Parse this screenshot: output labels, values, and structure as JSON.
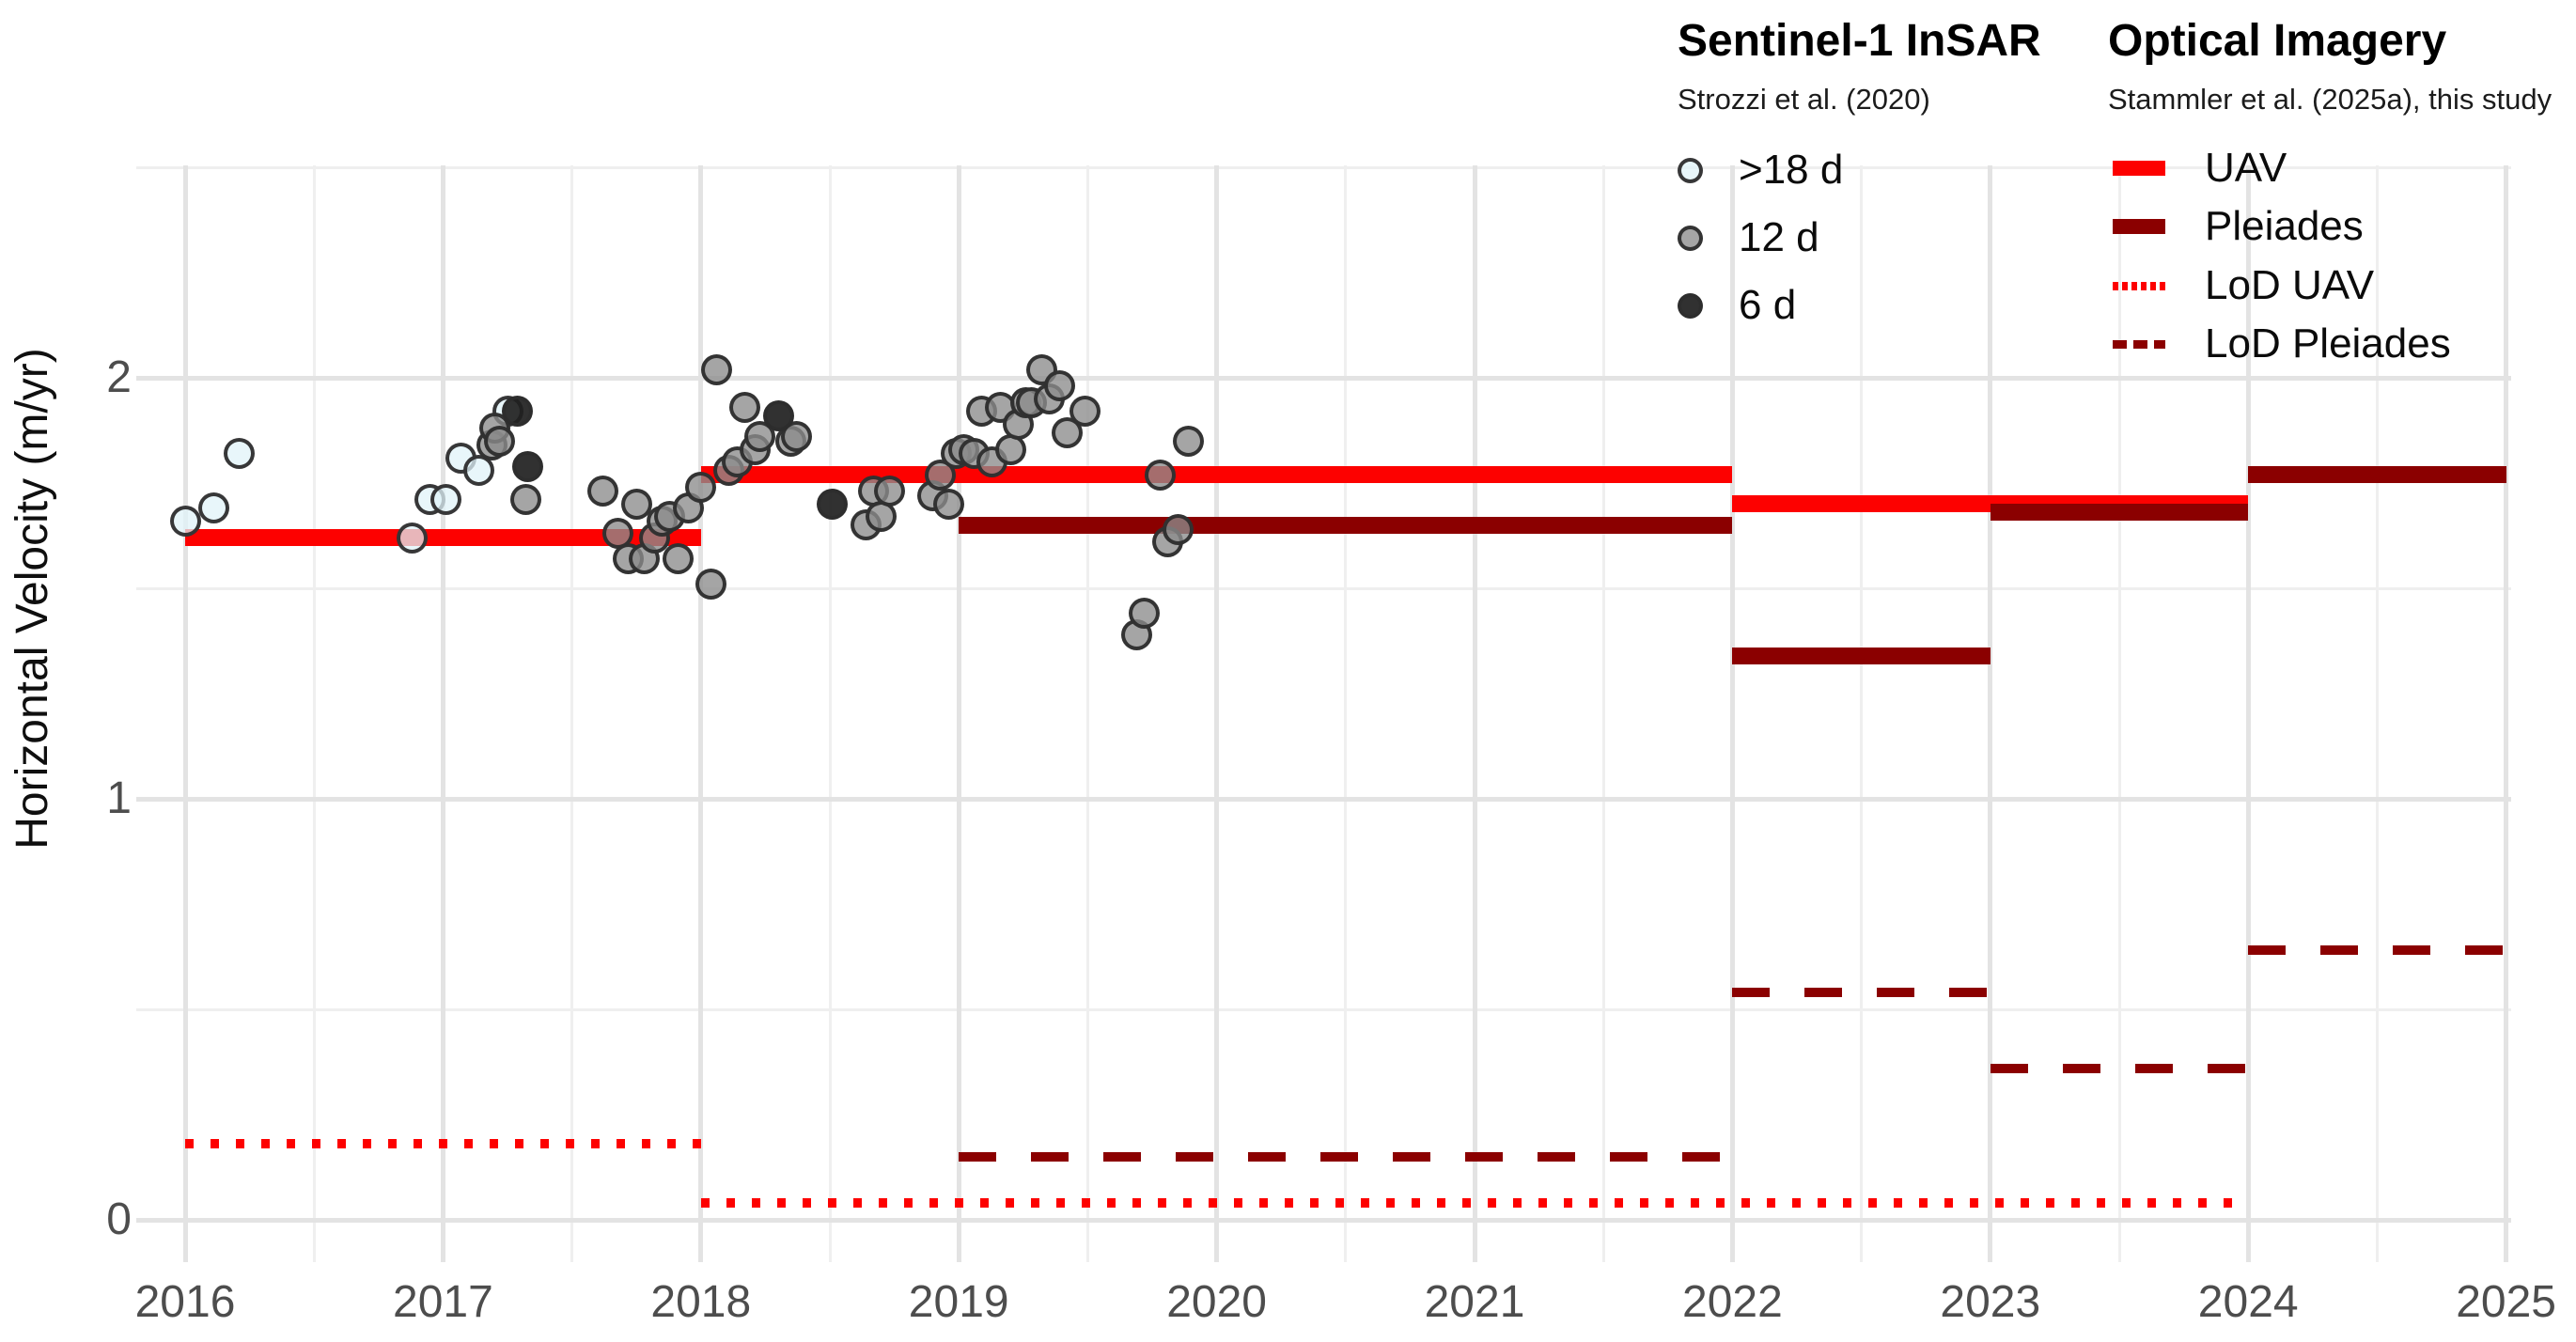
{
  "axes": {
    "y_label": "Horizontal Velocity (m/yr)",
    "x_tick_labels": [
      "2016",
      "2017",
      "2018",
      "2019",
      "2020",
      "2021",
      "2022",
      "2023",
      "2024",
      "2025"
    ],
    "y_tick_labels": [
      "0",
      "1",
      "2"
    ]
  },
  "legend": {
    "insar": {
      "title": "Sentinel-1 InSAR",
      "subtitle": "Strozzi et al. (2020)",
      "items": [
        {
          "label": ">18 d",
          "marker": "circle-open"
        },
        {
          "label": "12 d",
          "marker": "circle-gray"
        },
        {
          "label": "6 d",
          "marker": "circle-black"
        }
      ]
    },
    "optical": {
      "title": "Optical Imagery",
      "subtitle": "Stammler et al. (2025a), this study",
      "items": [
        {
          "label": "UAV",
          "line": "solid",
          "color_key": "uav_red"
        },
        {
          "label": "Pleiades",
          "line": "solid",
          "color_key": "pleiades_dark_red"
        },
        {
          "label": "LoD UAV",
          "line": "dotted",
          "color_key": "uav_red"
        },
        {
          "label": "LoD Pleiades",
          "line": "dashed",
          "color_key": "pleiades_dark_red"
        }
      ]
    }
  },
  "colors": {
    "uav_red": "#fd0100",
    "pleiades_dark_red": "#8b0000",
    "marker_open_fill": "rgba(224,243,248,0.75)",
    "marker_12d_fill": "rgba(140,140,140,0.78)",
    "marker_6d_fill": "rgba(32,32,32,0.92)",
    "marker_stroke": "rgba(45,45,45,0.95)",
    "grid_major": "#e3e3e3",
    "grid_minor": "#efefef",
    "tick_text": "#4d4d4d"
  },
  "chart_data": {
    "type": "scatter",
    "title": "",
    "xlabel": "",
    "ylabel": "Horizontal Velocity (m/yr)",
    "x_axis": {
      "range": [
        2015.81,
        2025.02
      ],
      "major_ticks": [
        2016,
        2017,
        2018,
        2019,
        2020,
        2021,
        2022,
        2023,
        2024,
        2025
      ],
      "minor_gridlines": [
        2016.5,
        2017.5,
        2018.5,
        2019.5,
        2020.5,
        2021.5,
        2022.5,
        2023.5,
        2024.5
      ]
    },
    "y_axis": {
      "range": [
        -0.1,
        2.5
      ],
      "major_ticks": [
        0,
        1,
        2
      ],
      "minor_gridlines": [
        0.5,
        1.5,
        2.5
      ]
    },
    "grid": "major+minor",
    "legend_position": "top-right",
    "series": [
      {
        "name": "UAV",
        "type": "segments",
        "style": "solid",
        "color_key": "uav_red",
        "segments": [
          [
            2016.0,
            2018.0,
            1.62
          ],
          [
            2018.0,
            2022.0,
            1.77
          ],
          [
            2022.0,
            2023.0,
            1.7
          ],
          [
            2023.0,
            2024.0,
            1.7
          ]
        ]
      },
      {
        "name": "LoD UAV",
        "type": "segments",
        "style": "dotted",
        "color_key": "uav_red",
        "segments": [
          [
            2016.0,
            2018.0,
            0.18
          ],
          [
            2018.0,
            2024.0,
            0.04
          ]
        ]
      },
      {
        "name": "LoD Pleiades",
        "type": "segments",
        "style": "dashed",
        "color_key": "pleiades_dark_red",
        "segments": [
          [
            2019.0,
            2022.0,
            0.15
          ],
          [
            2022.0,
            2023.0,
            0.54
          ],
          [
            2023.0,
            2024.0,
            0.36
          ],
          [
            2024.0,
            2025.0,
            0.64
          ]
        ]
      },
      {
        "name": "Pleiades",
        "type": "segments",
        "style": "solid",
        "color_key": "pleiades_dark_red",
        "segments": [
          [
            2019.0,
            2022.0,
            1.65
          ],
          [
            2022.0,
            2023.0,
            1.34
          ],
          [
            2023.0,
            2024.0,
            1.68
          ],
          [
            2024.0,
            2025.0,
            1.77
          ]
        ]
      },
      {
        "name": "Sentinel-1 InSAR >18 d",
        "type": "scatter",
        "marker": "circle-open",
        "points": [
          [
            2016.0,
            1.66
          ],
          [
            2016.11,
            1.69
          ],
          [
            2016.21,
            1.82
          ],
          [
            2016.88,
            1.62
          ],
          [
            2016.95,
            1.71
          ],
          [
            2017.01,
            1.71
          ],
          [
            2017.07,
            1.81
          ],
          [
            2017.14,
            1.78
          ],
          [
            2017.25,
            1.92
          ]
        ]
      },
      {
        "name": "Sentinel-1 InSAR 12 d",
        "type": "scatter",
        "marker": "circle-gray",
        "points": [
          [
            2017.19,
            1.84
          ],
          [
            2017.2,
            1.88
          ],
          [
            2017.22,
            1.85
          ],
          [
            2017.32,
            1.71
          ],
          [
            2017.62,
            1.73
          ],
          [
            2017.68,
            1.63
          ],
          [
            2017.72,
            1.57
          ],
          [
            2017.75,
            1.7
          ],
          [
            2017.78,
            1.57
          ],
          [
            2017.82,
            1.62
          ],
          [
            2017.85,
            1.66
          ],
          [
            2017.88,
            1.67
          ],
          [
            2017.91,
            1.57
          ],
          [
            2017.95,
            1.69
          ],
          [
            2018.0,
            1.74
          ],
          [
            2018.04,
            1.51
          ],
          [
            2018.06,
            2.02
          ],
          [
            2018.11,
            1.78
          ],
          [
            2018.14,
            1.8
          ],
          [
            2018.17,
            1.93
          ],
          [
            2018.21,
            1.83
          ],
          [
            2018.23,
            1.86
          ],
          [
            2018.35,
            1.85
          ],
          [
            2018.37,
            1.86
          ],
          [
            2018.64,
            1.65
          ],
          [
            2018.67,
            1.73
          ],
          [
            2018.7,
            1.67
          ],
          [
            2018.73,
            1.73
          ],
          [
            2018.9,
            1.72
          ],
          [
            2018.93,
            1.77
          ],
          [
            2018.96,
            1.7
          ],
          [
            2018.99,
            1.82
          ],
          [
            2019.02,
            1.83
          ],
          [
            2019.06,
            1.82
          ],
          [
            2019.09,
            1.92
          ],
          [
            2019.13,
            1.8
          ],
          [
            2019.16,
            1.93
          ],
          [
            2019.2,
            1.83
          ],
          [
            2019.23,
            1.89
          ],
          [
            2019.26,
            1.94
          ],
          [
            2019.28,
            1.94
          ],
          [
            2019.32,
            2.02
          ],
          [
            2019.35,
            1.95
          ],
          [
            2019.39,
            1.98
          ],
          [
            2019.42,
            1.87
          ],
          [
            2019.49,
            1.92
          ],
          [
            2019.69,
            1.39
          ],
          [
            2019.72,
            1.44
          ],
          [
            2019.78,
            1.77
          ],
          [
            2019.81,
            1.61
          ],
          [
            2019.85,
            1.64
          ],
          [
            2019.89,
            1.85
          ]
        ]
      },
      {
        "name": "Sentinel-1 InSAR 6 d",
        "type": "scatter",
        "marker": "circle-black",
        "points": [
          [
            2017.29,
            1.92
          ],
          [
            2017.33,
            1.79
          ],
          [
            2018.3,
            1.91
          ],
          [
            2018.51,
            1.7
          ]
        ]
      }
    ]
  }
}
